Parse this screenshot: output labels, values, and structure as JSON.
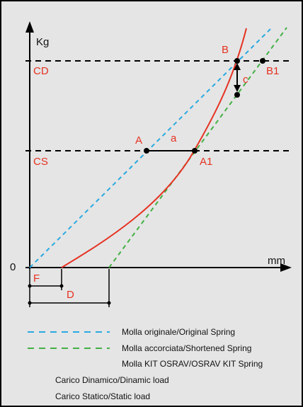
{
  "colors": {
    "background": "#e5e5e5",
    "frame": "#000000",
    "axis": "#000000",
    "accent_red": "#e53222",
    "original_spring": "#29a9e1",
    "shortened_spring": "#43b045",
    "osrav_spring": "#e53222",
    "text": "#111111"
  },
  "axes": {
    "y_label": "Kg",
    "x_label": "mm",
    "origin_label": "0"
  },
  "levels": {
    "dynamic": "CD",
    "static": "CS"
  },
  "points": {
    "A": "A",
    "A1": "A1",
    "B": "B",
    "B1": "B1"
  },
  "gaps": {
    "a": "a",
    "c": "c"
  },
  "offsets": {
    "F": "F",
    "D": "D"
  },
  "legend": {
    "original_spring": "Molla originale/Original Spring",
    "shortened_spring": "Molla accorciata/Shortened Spring",
    "osrav_spring": "Molla KIT OSRAV/OSRAV KIT Spring",
    "dynamic_load": "Carico Dinamico/Dinamic load",
    "static_load": "Carico Statico/Static load"
  }
}
